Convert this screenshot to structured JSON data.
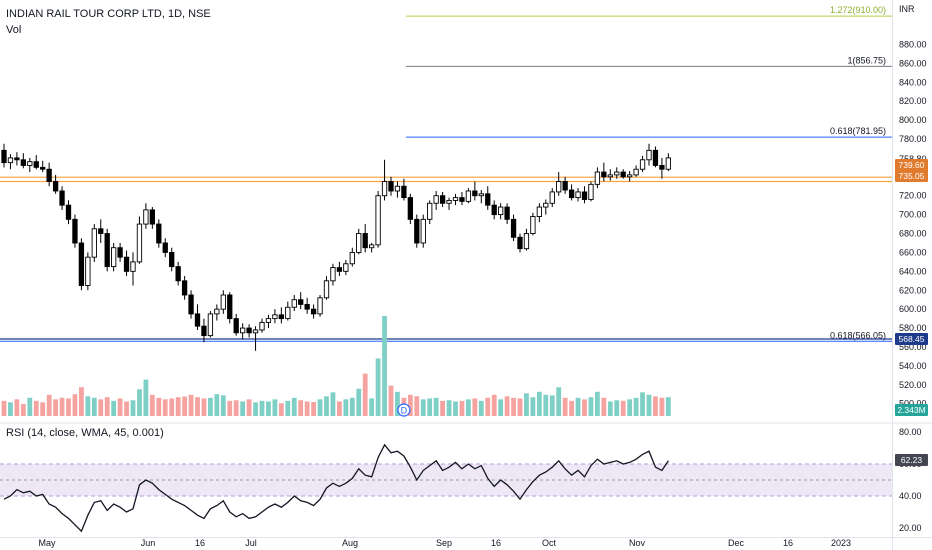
{
  "header": {
    "symbol_line": "INDIAN RAIL TOUR CORP LTD, 1D, NSE",
    "volume_label": "Vol",
    "currency": "INR"
  },
  "rsi_panel": {
    "label": "RSI (14, close, WMA, 45, 0.001)",
    "value_tag": "62.23",
    "ticks": [
      "80.00",
      "60.00",
      "40.00",
      "20.00"
    ],
    "band": [
      40,
      60
    ],
    "midline": 50
  },
  "price_tags": {
    "upper_tag_1": "739.60",
    "upper_tag_2": "735.05",
    "low_tag": "568.45",
    "volume_tag": "2.343M"
  },
  "fib_levels": [
    {
      "label": "1.272(910.00)",
      "price": 910.0,
      "color": "#b5cf49"
    },
    {
      "label": "1(856.75)",
      "price": 856.75,
      "color": "#787b86"
    },
    {
      "label": "0.618(781.95)",
      "price": 781.95,
      "color": "#2962ff"
    },
    {
      "label": "0.618(566.05)",
      "price": 566.05,
      "color": "#2962ff"
    }
  ],
  "horizontal_lines": [
    {
      "price": 739.6,
      "color": "#f7a440"
    },
    {
      "price": 735.05,
      "color": "#f7a440"
    },
    {
      "price": 568.45,
      "color": "#1e3a8a"
    }
  ],
  "event_marker": "D",
  "colors": {
    "up": "#ffffff",
    "down": "#000000",
    "vol_up": "#7ed0c6",
    "vol_down": "#f4a3a0",
    "rsi_line": "#131722",
    "rsi_band": "#ede7f6",
    "tag_orange": "#e07b2d",
    "tag_navy": "#1e3a8a",
    "tag_teal": "#26a69a",
    "tag_gray": "#434651"
  },
  "chart_data": {
    "type": "candlestick",
    "title": "INDIAN RAIL TOUR CORP LTD, 1D, NSE",
    "y_axis_ticks": [
      "880.00",
      "860.00",
      "840.00",
      "820.00",
      "800.00",
      "780.00",
      "758.80",
      "720.00",
      "700.00",
      "680.00",
      "660.00",
      "640.00",
      "620.00",
      "600.00",
      "580.00",
      "560.00",
      "540.00",
      "520.00",
      "500.00"
    ],
    "ylim": [
      487,
      927
    ],
    "x_axis_labels": [
      "May",
      "Jun",
      "16",
      "Jul",
      "Aug",
      "Sep",
      "16",
      "Oct",
      "Nov",
      "Dec",
      "16",
      "2023"
    ],
    "candles": [
      {
        "o": 768,
        "h": 775,
        "l": 750,
        "c": 755
      },
      {
        "o": 755,
        "h": 764,
        "l": 748,
        "c": 760
      },
      {
        "o": 760,
        "h": 766,
        "l": 752,
        "c": 758
      },
      {
        "o": 758,
        "h": 765,
        "l": 749,
        "c": 752
      },
      {
        "o": 752,
        "h": 760,
        "l": 745,
        "c": 756
      },
      {
        "o": 756,
        "h": 763,
        "l": 748,
        "c": 750
      },
      {
        "o": 750,
        "h": 757,
        "l": 745,
        "c": 748
      },
      {
        "o": 748,
        "h": 755,
        "l": 730,
        "c": 735
      },
      {
        "o": 735,
        "h": 742,
        "l": 722,
        "c": 725
      },
      {
        "o": 725,
        "h": 730,
        "l": 705,
        "c": 710
      },
      {
        "o": 710,
        "h": 715,
        "l": 690,
        "c": 695
      },
      {
        "o": 695,
        "h": 700,
        "l": 665,
        "c": 670
      },
      {
        "o": 670,
        "h": 675,
        "l": 620,
        "c": 625
      },
      {
        "o": 625,
        "h": 660,
        "l": 620,
        "c": 655
      },
      {
        "o": 655,
        "h": 690,
        "l": 650,
        "c": 685
      },
      {
        "o": 685,
        "h": 695,
        "l": 670,
        "c": 680
      },
      {
        "o": 680,
        "h": 685,
        "l": 640,
        "c": 645
      },
      {
        "o": 645,
        "h": 670,
        "l": 640,
        "c": 665
      },
      {
        "o": 665,
        "h": 670,
        "l": 650,
        "c": 655
      },
      {
        "o": 655,
        "h": 662,
        "l": 635,
        "c": 640
      },
      {
        "o": 640,
        "h": 660,
        "l": 625,
        "c": 650
      },
      {
        "o": 650,
        "h": 698,
        "l": 648,
        "c": 690
      },
      {
        "o": 690,
        "h": 712,
        "l": 685,
        "c": 705
      },
      {
        "o": 705,
        "h": 708,
        "l": 685,
        "c": 690
      },
      {
        "o": 690,
        "h": 695,
        "l": 665,
        "c": 670
      },
      {
        "o": 670,
        "h": 675,
        "l": 655,
        "c": 660
      },
      {
        "o": 660,
        "h": 665,
        "l": 640,
        "c": 645
      },
      {
        "o": 645,
        "h": 650,
        "l": 625,
        "c": 630
      },
      {
        "o": 630,
        "h": 635,
        "l": 610,
        "c": 615
      },
      {
        "o": 615,
        "h": 620,
        "l": 590,
        "c": 595
      },
      {
        "o": 595,
        "h": 605,
        "l": 578,
        "c": 582
      },
      {
        "o": 582,
        "h": 590,
        "l": 565,
        "c": 572
      },
      {
        "o": 572,
        "h": 598,
        "l": 570,
        "c": 595
      },
      {
        "o": 595,
        "h": 605,
        "l": 588,
        "c": 600
      },
      {
        "o": 600,
        "h": 620,
        "l": 595,
        "c": 615
      },
      {
        "o": 615,
        "h": 618,
        "l": 585,
        "c": 590
      },
      {
        "o": 590,
        "h": 595,
        "l": 572,
        "c": 575
      },
      {
        "o": 575,
        "h": 585,
        "l": 568,
        "c": 580
      },
      {
        "o": 580,
        "h": 584,
        "l": 570,
        "c": 575
      },
      {
        "o": 575,
        "h": 582,
        "l": 556,
        "c": 578
      },
      {
        "o": 578,
        "h": 590,
        "l": 575,
        "c": 586
      },
      {
        "o": 586,
        "h": 594,
        "l": 580,
        "c": 590
      },
      {
        "o": 590,
        "h": 600,
        "l": 585,
        "c": 594
      },
      {
        "o": 594,
        "h": 602,
        "l": 585,
        "c": 590
      },
      {
        "o": 590,
        "h": 608,
        "l": 588,
        "c": 602
      },
      {
        "o": 602,
        "h": 615,
        "l": 598,
        "c": 610
      },
      {
        "o": 610,
        "h": 618,
        "l": 600,
        "c": 605
      },
      {
        "o": 605,
        "h": 612,
        "l": 595,
        "c": 600
      },
      {
        "o": 600,
        "h": 605,
        "l": 590,
        "c": 595
      },
      {
        "o": 595,
        "h": 615,
        "l": 592,
        "c": 612
      },
      {
        "o": 612,
        "h": 635,
        "l": 610,
        "c": 630
      },
      {
        "o": 630,
        "h": 648,
        "l": 625,
        "c": 644
      },
      {
        "o": 644,
        "h": 650,
        "l": 635,
        "c": 640
      },
      {
        "o": 640,
        "h": 652,
        "l": 636,
        "c": 648
      },
      {
        "o": 648,
        "h": 665,
        "l": 645,
        "c": 660
      },
      {
        "o": 660,
        "h": 685,
        "l": 658,
        "c": 680
      },
      {
        "o": 680,
        "h": 690,
        "l": 660,
        "c": 665
      },
      {
        "o": 665,
        "h": 670,
        "l": 660,
        "c": 668
      },
      {
        "o": 668,
        "h": 725,
        "l": 665,
        "c": 720
      },
      {
        "o": 720,
        "h": 758,
        "l": 715,
        "c": 735
      },
      {
        "o": 735,
        "h": 740,
        "l": 720,
        "c": 725
      },
      {
        "o": 725,
        "h": 735,
        "l": 718,
        "c": 730
      },
      {
        "o": 730,
        "h": 738,
        "l": 715,
        "c": 718
      },
      {
        "o": 718,
        "h": 722,
        "l": 690,
        "c": 695
      },
      {
        "o": 695,
        "h": 700,
        "l": 665,
        "c": 670
      },
      {
        "o": 670,
        "h": 700,
        "l": 665,
        "c": 695
      },
      {
        "o": 695,
        "h": 715,
        "l": 690,
        "c": 712
      },
      {
        "o": 712,
        "h": 725,
        "l": 705,
        "c": 720
      },
      {
        "o": 720,
        "h": 724,
        "l": 708,
        "c": 712
      },
      {
        "o": 712,
        "h": 718,
        "l": 705,
        "c": 715
      },
      {
        "o": 715,
        "h": 722,
        "l": 710,
        "c": 718
      },
      {
        "o": 718,
        "h": 724,
        "l": 710,
        "c": 714
      },
      {
        "o": 714,
        "h": 728,
        "l": 712,
        "c": 725
      },
      {
        "o": 725,
        "h": 735,
        "l": 715,
        "c": 720
      },
      {
        "o": 720,
        "h": 726,
        "l": 712,
        "c": 722
      },
      {
        "o": 722,
        "h": 730,
        "l": 705,
        "c": 710
      },
      {
        "o": 710,
        "h": 715,
        "l": 695,
        "c": 700
      },
      {
        "o": 700,
        "h": 712,
        "l": 695,
        "c": 708
      },
      {
        "o": 708,
        "h": 712,
        "l": 690,
        "c": 695
      },
      {
        "o": 695,
        "h": 700,
        "l": 672,
        "c": 676
      },
      {
        "o": 676,
        "h": 680,
        "l": 660,
        "c": 664
      },
      {
        "o": 664,
        "h": 685,
        "l": 662,
        "c": 680
      },
      {
        "o": 680,
        "h": 702,
        "l": 678,
        "c": 698
      },
      {
        "o": 698,
        "h": 712,
        "l": 692,
        "c": 708
      },
      {
        "o": 708,
        "h": 716,
        "l": 700,
        "c": 712
      },
      {
        "o": 712,
        "h": 728,
        "l": 708,
        "c": 724
      },
      {
        "o": 724,
        "h": 745,
        "l": 720,
        "c": 735
      },
      {
        "o": 735,
        "h": 740,
        "l": 722,
        "c": 726
      },
      {
        "o": 726,
        "h": 732,
        "l": 715,
        "c": 718
      },
      {
        "o": 718,
        "h": 728,
        "l": 714,
        "c": 724
      },
      {
        "o": 724,
        "h": 730,
        "l": 712,
        "c": 716
      },
      {
        "o": 716,
        "h": 735,
        "l": 714,
        "c": 732
      },
      {
        "o": 732,
        "h": 750,
        "l": 728,
        "c": 745
      },
      {
        "o": 745,
        "h": 755,
        "l": 735,
        "c": 740
      },
      {
        "o": 740,
        "h": 748,
        "l": 736,
        "c": 742
      },
      {
        "o": 742,
        "h": 750,
        "l": 738,
        "c": 745
      },
      {
        "o": 745,
        "h": 748,
        "l": 738,
        "c": 740
      },
      {
        "o": 740,
        "h": 746,
        "l": 735,
        "c": 742
      },
      {
        "o": 742,
        "h": 752,
        "l": 740,
        "c": 748
      },
      {
        "o": 748,
        "h": 762,
        "l": 745,
        "c": 758
      },
      {
        "o": 758,
        "h": 775,
        "l": 752,
        "c": 768
      },
      {
        "o": 768,
        "h": 772,
        "l": 750,
        "c": 752
      },
      {
        "o": 752,
        "h": 760,
        "l": 738,
        "c": 748
      },
      {
        "o": 748,
        "h": 765,
        "l": 746,
        "c": 760
      }
    ],
    "volume": [
      50,
      45,
      55,
      40,
      60,
      50,
      45,
      70,
      55,
      60,
      58,
      72,
      95,
      65,
      60,
      55,
      62,
      50,
      58,
      48,
      52,
      88,
      120,
      70,
      60,
      55,
      58,
      62,
      64,
      70,
      62,
      58,
      60,
      72,
      68,
      50,
      52,
      48,
      55,
      45,
      50,
      48,
      55,
      42,
      50,
      60,
      52,
      48,
      46,
      55,
      65,
      78,
      48,
      55,
      60,
      90,
      140,
      58,
      190,
      330,
      100,
      80,
      60,
      70,
      65,
      55,
      58,
      60,
      50,
      52,
      48,
      50,
      55,
      58,
      50,
      60,
      70,
      55,
      65,
      60,
      58,
      75,
      62,
      80,
      70,
      68,
      95,
      60,
      50,
      60,
      55,
      62,
      80,
      60,
      48,
      52,
      50,
      55,
      60,
      78,
      70,
      65,
      60,
      62
    ],
    "rsi": [
      38,
      40,
      44,
      42,
      43,
      40,
      41,
      35,
      33,
      29,
      26,
      22,
      18,
      28,
      36,
      37,
      31,
      35,
      33,
      30,
      32,
      47,
      50,
      48,
      44,
      41,
      38,
      36,
      34,
      31,
      28,
      26,
      32,
      34,
      37,
      30,
      27,
      29,
      26,
      27,
      30,
      33,
      35,
      33,
      36,
      40,
      37,
      36,
      34,
      38,
      45,
      48,
      46,
      48,
      51,
      57,
      53,
      52,
      64,
      72,
      67,
      68,
      65,
      58,
      50,
      56,
      59,
      62,
      56,
      58,
      61,
      57,
      60,
      57,
      59,
      51,
      46,
      50,
      47,
      43,
      38,
      44,
      49,
      53,
      55,
      58,
      62,
      57,
      53,
      56,
      52,
      59,
      63,
      60,
      61,
      62,
      60,
      61,
      63,
      66,
      68,
      58,
      56,
      62
    ],
    "rsi_ylim": [
      15,
      85
    ]
  }
}
